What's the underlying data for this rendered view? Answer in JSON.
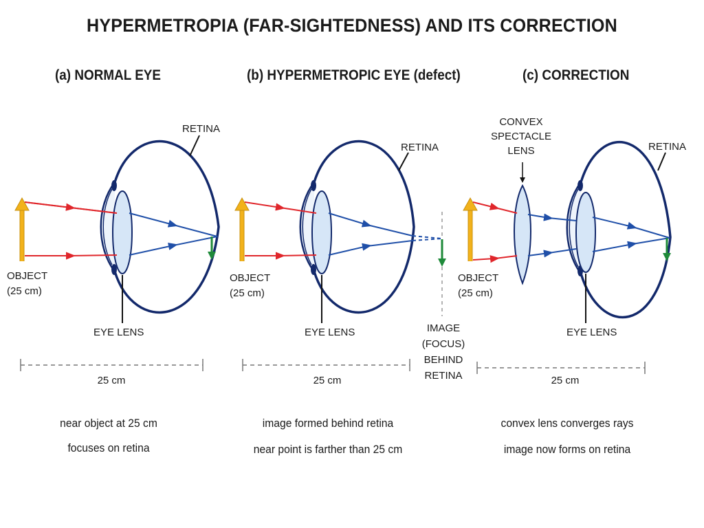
{
  "title": "HYPERMETROPIA (FAR-SIGHTEDNESS) AND ITS CORRECTION",
  "panels": {
    "a": {
      "heading": "(a) NORMAL EYE",
      "retina": "RETINA",
      "object": [
        "OBJECT",
        "(25 cm)"
      ],
      "eye_lens": "EYE LENS",
      "distance": "25 cm",
      "caption": [
        "near object at 25 cm",
        "focuses on retina"
      ]
    },
    "b": {
      "heading": "(b) HYPERMETROPIC EYE (defect)",
      "retina": "RETINA",
      "object": [
        "OBJECT",
        "(25 cm)"
      ],
      "eye_lens": "EYE LENS",
      "image_label": [
        "IMAGE",
        "(FOCUS)",
        "BEHIND",
        "RETINA"
      ],
      "distance": "25 cm",
      "caption": [
        "image formed behind retina",
        "near point is farther than 25 cm"
      ]
    },
    "c": {
      "heading": "(c) CORRECTION",
      "retina": "RETINA",
      "convex_lens": [
        "CONVEX",
        "SPECTACLE",
        "LENS"
      ],
      "object": [
        "OBJECT",
        "(25 cm)"
      ],
      "eye_lens": "EYE LENS",
      "distance": "25 cm",
      "caption": [
        "convex lens converges rays",
        "image now forms on retina"
      ]
    }
  },
  "colors": {
    "eye_outline": "#13296b",
    "incident_ray": "#e0262b",
    "refracted_ray": "#1f4fa8",
    "object_arrow": "#f2b21b",
    "image_arrow": "#1f8a3a",
    "lens_fill": "#d6e6f7"
  }
}
